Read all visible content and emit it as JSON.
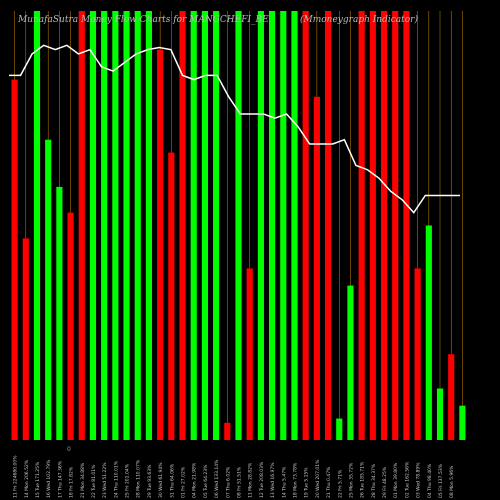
{
  "chart_data": {
    "type": "bar",
    "title_left": "MunafaSutra  Money Flow  Charts for MANGCHEFI_BE",
    "title_right": "(Mmoneygraph Indicator)",
    "zero_label": "0",
    "ylim": [
      0,
      100
    ],
    "colors": {
      "up": "#00ff00",
      "down": "#ff0000",
      "line": "#ffffff",
      "guide": "#cc8800"
    },
    "categories": [
      "11-Jul-25",
      "14-Jul-25",
      "15-Jul-25",
      "16-Jul-25",
      "17-Jul-25",
      "18-Jul-25",
      "21-Jul-25",
      "22-Jul-25",
      "23-Jul-25",
      "24-Jul-25",
      "25-Jul-25",
      "28-Jul-25",
      "29-Jul-25",
      "30-Jul-25",
      "31-Jul-25",
      "01-Aug-25",
      "04-Aug-25",
      "05-Aug-25",
      "06-Aug-25",
      "07-Aug-25",
      "08-Aug-25",
      "11-Aug-25",
      "12-Aug-25",
      "13-Aug-25",
      "14-Aug-25",
      "18-Aug-25",
      "19-Aug-25",
      "20-Aug-25",
      "21-Aug-25",
      "22-Aug-25",
      "25-Aug-25",
      "26-Aug-25",
      "28-Aug-25",
      "29-Aug-25",
      "01-Sep-25",
      "02-Sep-25",
      "03-Sep-25",
      "04-Sep-25",
      "05-Sep-25",
      "08-Sep-25"
    ],
    "x_labels": [
      "11 Fri 224680.00%",
      "14 Mon 206.52%",
      "15 Tue 171.25%",
      "16 Wed 102.79%",
      "17 Thu 147.36%",
      "18 Fri 17.82%",
      "21 Mon 34.88%",
      "22 Tue 81.01%",
      "23 Wed 51.22%",
      "24 Thu 110.01%",
      "25 Fri 201.04%",
      "28 Mon 110.07%",
      "29 Tue 93.63%",
      "30 Wed 61.94%",
      "31 Thu 64.06%",
      "01 Fri 27.02%",
      "04 Mon 21.98%",
      "05 Tue 64.23%",
      "06 Wed 133.14%",
      "07 Thu 6.02%",
      "08 Fri 51.51%",
      "11 Mon 28.82%",
      "12 Tue 208.03%",
      "13 Wed 16.97%",
      "14 Thu 5.47%",
      "18 Mon 73.78%",
      "19 Tue 5.15%",
      "20 Wed 207.01%",
      "21 Thu 0.47%",
      "22 Fri 5.71%",
      "25 Mon 35.72%",
      "26 Tue 185.71%",
      "28 Thu 34.37%",
      "29 Fri 48.25%",
      "01 Mon 39.80%",
      "02 Tue 162.56%",
      "03 Wed 78.89%",
      "04 Thu 98.40%",
      "05 Fri 137.53%",
      "08 Mon 5.96%"
    ],
    "bar_values": [
      84,
      47,
      100,
      70,
      59,
      53,
      100,
      100,
      100,
      100,
      100,
      100,
      100,
      91,
      67,
      100,
      100,
      100,
      100,
      4,
      100,
      40,
      100,
      100,
      100,
      100,
      100,
      80,
      100,
      5,
      36,
      100,
      100,
      100,
      100,
      100,
      40,
      50,
      12,
      20
    ],
    "bar_colors": [
      "down",
      "down",
      "up",
      "up",
      "up",
      "down",
      "down",
      "up",
      "up",
      "up",
      "up",
      "up",
      "up",
      "down",
      "down",
      "down",
      "up",
      "up",
      "up",
      "down",
      "up",
      "down",
      "up",
      "up",
      "up",
      "up",
      "down",
      "down",
      "down",
      "up",
      "up",
      "down",
      "down",
      "down",
      "down",
      "down",
      "down",
      "up",
      "up",
      "down"
    ],
    "bar_values_last": [
      8
    ],
    "bar_colors_last": [
      "up"
    ],
    "line_values": [
      85,
      85,
      90,
      92,
      91,
      92,
      90,
      91,
      87,
      86,
      88,
      90,
      91,
      91.5,
      91,
      85,
      84,
      85,
      85,
      80,
      76,
      76,
      76,
      75,
      76,
      73,
      69,
      69,
      69,
      70,
      64,
      63,
      61,
      58,
      56,
      53,
      57,
      57,
      57,
      57
    ]
  }
}
